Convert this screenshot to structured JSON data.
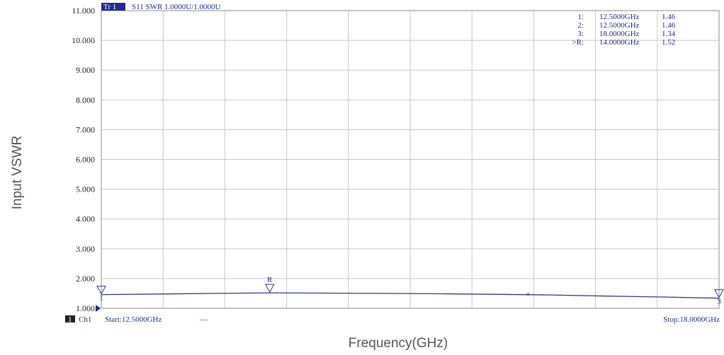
{
  "chart_data": {
    "type": "line",
    "title": "",
    "xlabel": "Frequency(GHz)",
    "ylabel": "Input VSWR",
    "xlim": [
      12.5,
      18.0
    ],
    "ylim": [
      1.0,
      11.0
    ],
    "grid": true,
    "y_ticks": [
      "1.000",
      "2.000",
      "3.000",
      "4.000",
      "5.000",
      "6.000",
      "7.000",
      "8.000",
      "9.000",
      "10.000",
      "11.000"
    ],
    "series": [
      {
        "x": [
          12.5,
          13.0,
          13.5,
          14.0,
          14.5,
          15.0,
          15.5,
          16.0,
          16.5,
          17.0,
          17.5,
          18.0
        ],
        "y": [
          1.46,
          1.48,
          1.5,
          1.52,
          1.51,
          1.5,
          1.49,
          1.47,
          1.45,
          1.41,
          1.38,
          1.34
        ],
        "color": "#2e3a8c"
      }
    ],
    "trace_tag": "Tr 1",
    "trace_info": "S11 SWR 1.0000U/1.0000U",
    "markers": [
      {
        "id": "1:",
        "freq": "12.5000GHz",
        "value": "1.46",
        "x": 12.5,
        "y": 1.46,
        "label": "1"
      },
      {
        "id": "2:",
        "freq": "12.5000GHz",
        "value": "1.46",
        "x": 12.5,
        "y": 1.46,
        "label": ""
      },
      {
        "id": "3:",
        "freq": "18.0000GHz",
        "value": "1.34",
        "x": 18.0,
        "y": 1.34,
        "label": "3"
      },
      {
        "id": ">R:",
        "freq": "14.0000GHz",
        "value": "1.52",
        "x": 14.0,
        "y": 1.52,
        "label": "R"
      }
    ],
    "extra_point": {
      "x": 16.3,
      "y": 1.46,
      "symbol": "+"
    },
    "channel_badge": "1",
    "channel": "Ch1",
    "start": "Start:12.5000GHz",
    "start_dash": "—",
    "stop": "Stop:18.0000GHz"
  },
  "colors": {
    "trace": "#2e3a8c",
    "text": "#1e2a8a",
    "grid": "#c8c8c8",
    "frame": "#888888",
    "tag_bg": "#1f2b8c"
  }
}
